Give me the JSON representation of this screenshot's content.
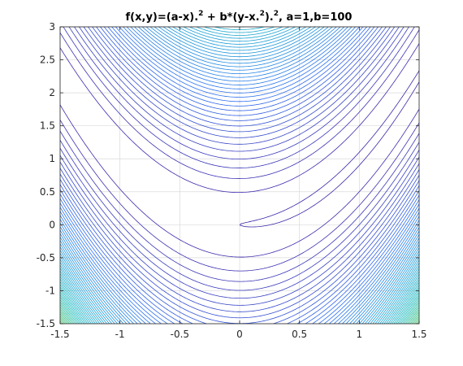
{
  "chart_data": {
    "type": "contour",
    "title": {
      "t1": "f(x,y)=(a-x).",
      "t2": "2",
      "t3": " + b*(y-x.",
      "t4": "2",
      "t5": ").",
      "t6": "2",
      "t7": ", a=1,b=100"
    },
    "function": "(a-x)^2 + b*(y-x^2)^2",
    "params": {
      "a": 1,
      "b": 100
    },
    "xlim": [
      -1.5,
      1.5
    ],
    "ylim": [
      -1.5,
      3
    ],
    "xticks": [
      {
        "value": -1.5,
        "label": "-1.5"
      },
      {
        "value": -1,
        "label": "-1"
      },
      {
        "value": -0.5,
        "label": "-0.5"
      },
      {
        "value": 0,
        "label": "0"
      },
      {
        "value": 0.5,
        "label": "0.5"
      },
      {
        "value": 1,
        "label": "1"
      },
      {
        "value": 1.5,
        "label": "1.5"
      }
    ],
    "yticks": [
      {
        "value": -1.5,
        "label": "-1.5"
      },
      {
        "value": -1,
        "label": "-1"
      },
      {
        "value": -0.5,
        "label": "-0.5"
      },
      {
        "value": 0,
        "label": "0"
      },
      {
        "value": 0.5,
        "label": "0.5"
      },
      {
        "value": 1,
        "label": "1"
      },
      {
        "value": 1.5,
        "label": "1.5"
      },
      {
        "value": 2,
        "label": "2"
      },
      {
        "value": 2.5,
        "label": "2.5"
      },
      {
        "value": 3,
        "label": "3"
      }
    ],
    "levels": [
      1,
      25,
      50,
      75,
      100,
      125,
      150,
      175,
      200,
      225,
      250,
      275,
      300,
      325,
      350,
      375,
      400,
      425,
      450,
      475,
      500,
      525,
      550,
      575,
      600,
      625,
      650,
      675,
      700,
      725,
      750,
      775,
      800,
      825,
      850,
      875,
      900,
      925,
      950,
      975,
      1000,
      1025,
      1050,
      1075,
      1100,
      1125,
      1150,
      1175,
      1200,
      1225,
      1250,
      1275,
      1300,
      1325,
      1350,
      1375,
      1400,
      1425,
      1450,
      1475,
      1500,
      1525,
      1550,
      1575,
      1600,
      1625,
      1650,
      1675,
      1700,
      1725,
      1750,
      1775,
      1800,
      1825,
      1850,
      1875,
      1900,
      1925,
      1950,
      1975,
      2000,
      2025,
      2050,
      2075,
      2100,
      2125,
      2150,
      2175,
      2200,
      2225,
      2250,
      2275,
      2300,
      2325,
      2350,
      2375,
      2400,
      2425,
      2450,
      2475,
      2500
    ],
    "grid": true,
    "colormap": "parula",
    "colormap_colors": [
      "#3e26a8",
      "#2c6ef2",
      "#1a9ad9",
      "#13b9bb",
      "#5ec962",
      "#c2bd3f",
      "#f9d22b",
      "#f9fb0e"
    ]
  }
}
